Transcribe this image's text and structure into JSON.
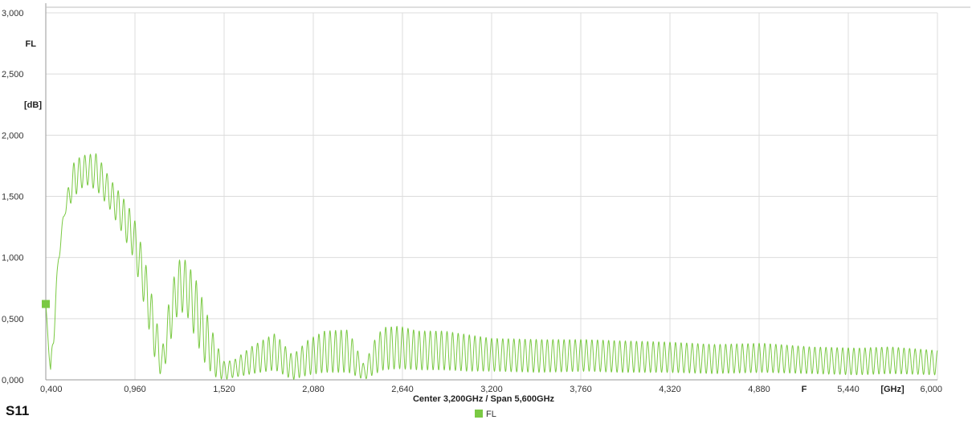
{
  "chart_data": {
    "type": "line",
    "title": "S11",
    "subtitle": "Center 3,200GHz / Span 5,600GHz",
    "ylabel": "FL",
    "yunit": "[dB]",
    "xlabel": "F",
    "xunit": "[GHz]",
    "xlim": [
      0.4,
      6.0
    ],
    "ylim": [
      0.0,
      3.0
    ],
    "grid": true,
    "legend_placement": "bottom-center",
    "x_ticks": [
      "0,400",
      "0,960",
      "1,520",
      "2,080",
      "2,640",
      "3,200",
      "3,760",
      "4,320",
      "4,880",
      "5,440",
      "6,000"
    ],
    "y_ticks": [
      "0,000",
      "0,500",
      "1,000",
      "1,500",
      "2,000",
      "2,500",
      "3,000"
    ],
    "marker": {
      "x": 0.4,
      "y": 0.62
    },
    "series": [
      {
        "name": "FL",
        "color": "#7ac943",
        "ripple_period_ghz": 0.035,
        "envelope": {
          "x": [
            0.4,
            0.43,
            0.45,
            0.48,
            0.52,
            0.58,
            0.65,
            0.72,
            0.8,
            0.88,
            0.95,
            1.02,
            1.08,
            1.13,
            1.18,
            1.23,
            1.28,
            1.35,
            1.41,
            1.47,
            1.52,
            1.58,
            1.7,
            1.84,
            1.95,
            2.05,
            2.15,
            2.3,
            2.4,
            2.47,
            2.52,
            2.62,
            2.74,
            2.9,
            3.05,
            3.2,
            3.5,
            3.8,
            4.0,
            4.3,
            4.6,
            4.9,
            5.2,
            5.5,
            5.7,
            6.0
          ],
          "upper": [
            0.62,
            0.1,
            0.5,
            1.05,
            1.45,
            1.8,
            1.84,
            1.85,
            1.65,
            1.5,
            1.35,
            1.0,
            0.6,
            0.24,
            0.7,
            0.98,
            0.98,
            0.8,
            0.55,
            0.3,
            0.15,
            0.16,
            0.28,
            0.38,
            0.2,
            0.33,
            0.4,
            0.41,
            0.12,
            0.34,
            0.43,
            0.44,
            0.4,
            0.4,
            0.37,
            0.34,
            0.33,
            0.33,
            0.32,
            0.31,
            0.29,
            0.3,
            0.27,
            0.26,
            0.27,
            0.24
          ],
          "lower": [
            0.62,
            0.0,
            0.3,
            0.95,
            1.35,
            1.5,
            1.6,
            1.55,
            1.4,
            1.2,
            1.0,
            0.6,
            0.2,
            0.0,
            0.3,
            0.55,
            0.55,
            0.3,
            0.1,
            0.02,
            0.0,
            0.02,
            0.05,
            0.08,
            0.0,
            0.04,
            0.06,
            0.06,
            0.0,
            0.05,
            0.08,
            0.09,
            0.08,
            0.08,
            0.07,
            0.07,
            0.06,
            0.07,
            0.06,
            0.06,
            0.05,
            0.06,
            0.05,
            0.04,
            0.05,
            0.04
          ]
        }
      }
    ]
  }
}
